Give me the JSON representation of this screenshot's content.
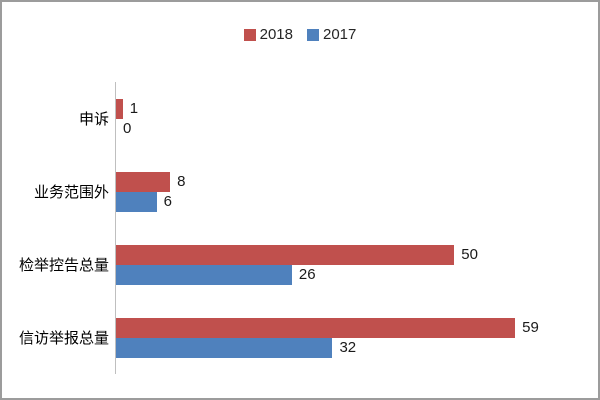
{
  "frame": {
    "background": "#FFFFFF",
    "border_color": "#9C9C9C"
  },
  "chart_data": {
    "type": "bar",
    "orientation": "horizontal",
    "title": "",
    "xlabel": "",
    "ylabel": "",
    "categories": [
      "申诉",
      "业务范围外",
      "检举控告总量",
      "信访举报总量"
    ],
    "series": [
      {
        "name": "2018",
        "color": "#C0504D",
        "values": [
          1,
          8,
          50,
          59
        ]
      },
      {
        "name": "2017",
        "color": "#4F81BD",
        "values": [
          0,
          6,
          26,
          32
        ]
      }
    ],
    "value_labels_shown": true,
    "xlim": [
      0,
      68
    ],
    "gridlines": false,
    "legend_position": "top-center",
    "axis_color": "#BFBFBF"
  }
}
